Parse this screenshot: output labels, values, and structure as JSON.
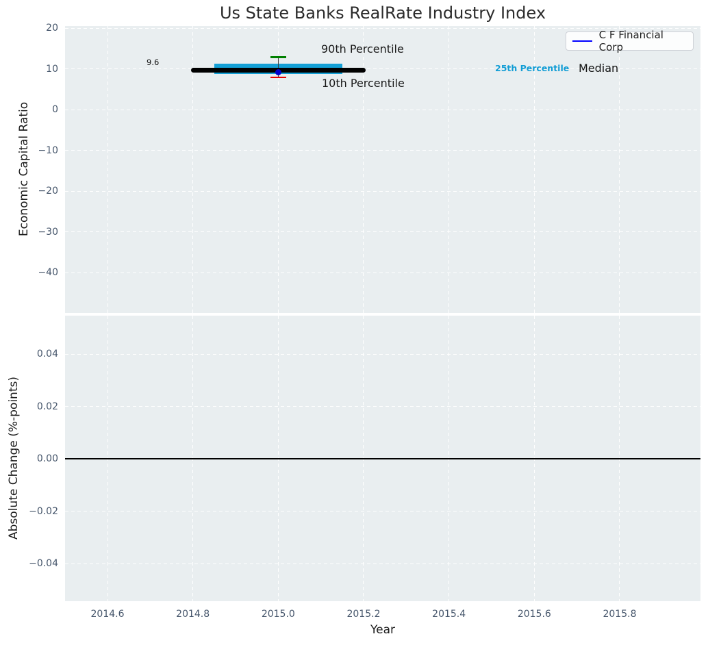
{
  "chart_data": [
    {
      "type": "box",
      "title": "Us State Banks RealRate Industry Index",
      "ylabel": "Economic Capital Ratio",
      "yticks": [
        20,
        10,
        0,
        -10,
        -20,
        -30,
        -40
      ],
      "ytick_labels": [
        "20",
        "10",
        "0",
        "−10",
        "−20",
        "−30",
        "−40"
      ],
      "ylim": [
        -49.9,
        20.5
      ],
      "grid": true,
      "x_center": 2015.0,
      "percentiles": {
        "p90": 12.9,
        "p75": 11.3,
        "median": 9.6,
        "p25": 8.8,
        "p10": 7.9
      },
      "median_span": [
        2014.795,
        2015.205
      ],
      "band_span": [
        2014.85,
        2015.15
      ],
      "cap_halfwidth": 0.018,
      "company_point": {
        "name": "C F Financial Corp",
        "x": 2015.0,
        "value": 9.1
      },
      "annotations": {
        "median_value_label": "9.6",
        "p90_label": "90th Percentile",
        "p10_label": "10th Percentile",
        "p25_label": "25th Percentile",
        "median_label": "Median"
      },
      "legend": {
        "position": "upper right",
        "entries": [
          {
            "label": "C F Financial Corp",
            "color": "#0000ff"
          }
        ]
      },
      "colors": {
        "band": "#14a0d6",
        "median": "#000000",
        "p90_cap": "#008000",
        "p10_cap": "#e60202",
        "whisker": "#3c3c3c",
        "company_point": "#0000cc",
        "background": "#e9eef0",
        "annotation_p25": "#129dd5"
      }
    },
    {
      "type": "line",
      "ylabel": "Absolute Change (%-points)",
      "xlabel": "Year",
      "yticks": [
        0.04,
        0.02,
        0.0,
        -0.02,
        -0.04
      ],
      "ytick_labels": [
        "0.04",
        "0.02",
        "0.00",
        "−0.02",
        "−0.04"
      ],
      "xticks": [
        2014.6,
        2014.8,
        2015.0,
        2015.2,
        2015.4,
        2015.6,
        2015.8
      ],
      "xtick_labels": [
        "2014.6",
        "2014.8",
        "2015.0",
        "2015.2",
        "2015.4",
        "2015.6",
        "2015.8"
      ],
      "ylim": [
        -0.0544,
        0.0547
      ],
      "xlim": [
        2014.5,
        2015.99
      ],
      "zero_line": 0.0,
      "series": [],
      "grid": true
    }
  ]
}
